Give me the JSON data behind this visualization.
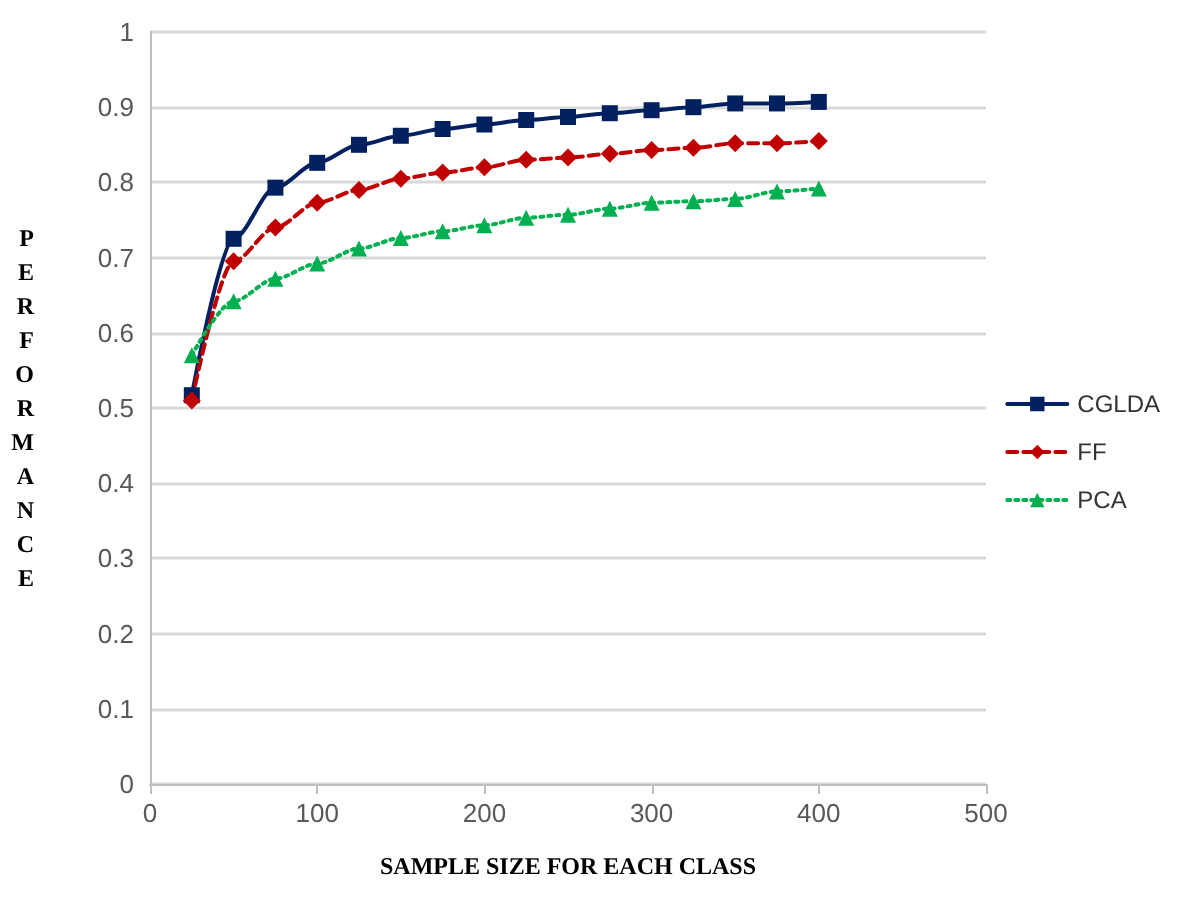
{
  "chart_data": {
    "type": "line",
    "xlabel": "SAMPLE SIZE FOR EACH CLASS",
    "ylabel": "PERFORMANCE",
    "x": [
      25,
      50,
      75,
      100,
      125,
      150,
      175,
      200,
      225,
      250,
      275,
      300,
      325,
      350,
      375,
      400
    ],
    "xlim": [
      0,
      500
    ],
    "xticks": [
      0,
      100,
      200,
      300,
      400,
      500
    ],
    "ylim": [
      0,
      1
    ],
    "yticks": [
      0,
      0.1,
      0.2,
      0.3,
      0.4,
      0.5,
      0.6,
      0.7,
      0.8,
      0.9,
      1
    ],
    "grid": "y",
    "legend": "right",
    "series": [
      {
        "name": "CGLDA",
        "color": "#002060",
        "marker": "square",
        "line_style": "solid",
        "values": [
          0.517,
          0.725,
          0.793,
          0.826,
          0.85,
          0.862,
          0.871,
          0.877,
          0.883,
          0.887,
          0.892,
          0.896,
          0.9,
          0.905,
          0.905,
          0.907
        ]
      },
      {
        "name": "FF",
        "color": "#c00000",
        "marker": "diamond",
        "line_style": "dashed",
        "values": [
          0.51,
          0.695,
          0.74,
          0.773,
          0.79,
          0.805,
          0.813,
          0.82,
          0.83,
          0.833,
          0.838,
          0.843,
          0.846,
          0.852,
          0.852,
          0.855
        ]
      },
      {
        "name": "PCA",
        "color": "#00b050",
        "marker": "triangle",
        "line_style": "dotted",
        "values": [
          0.57,
          0.642,
          0.672,
          0.692,
          0.712,
          0.726,
          0.735,
          0.743,
          0.753,
          0.757,
          0.765,
          0.773,
          0.775,
          0.778,
          0.788,
          0.792
        ]
      }
    ]
  }
}
